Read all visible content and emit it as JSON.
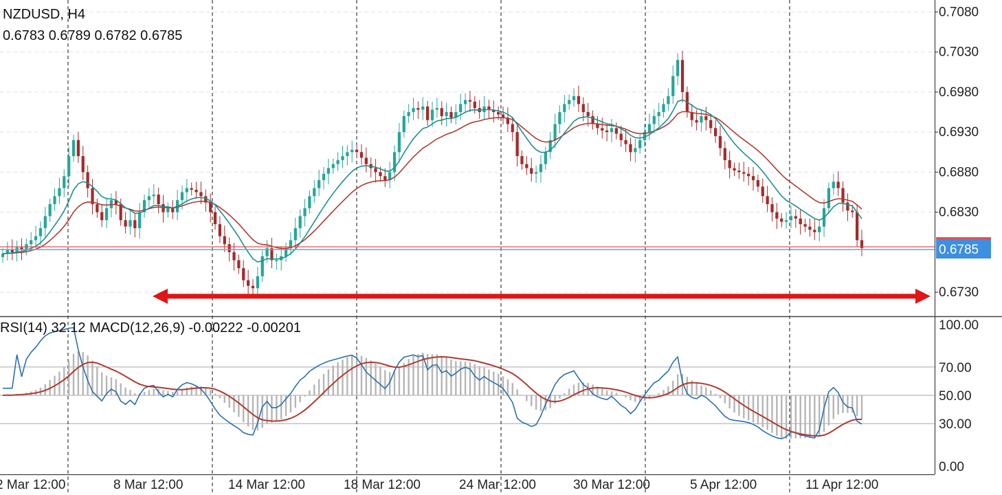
{
  "header": {
    "symbol": "NZDUSD, H4",
    "ohlc": "0.6783 0.6789 0.6782 0.6785"
  },
  "indicators_label": "RSI(14) 32.12 MACD(12,26,9) -0.00222 -0.00201",
  "price_axis": [
    "0.7080",
    "0.7030",
    "0.6980",
    "0.6930",
    "0.6880",
    "0.6830",
    "0.6730"
  ],
  "current_price": "0.6785",
  "indicator_axis": [
    "100.00",
    "70.00",
    "50.00",
    "30.00",
    "0.00"
  ],
  "time_axis": [
    "2 Mar 12:00",
    "8 Mar 12:00",
    "14 Mar 12:00",
    "18 Mar 12:00",
    "24 Mar 12:00",
    "30 Mar 12:00",
    "5 Apr 12:00",
    "11 Apr 12:00"
  ],
  "colors": {
    "bull": "#26a69a",
    "bear": "#a52a2a",
    "ma_fast": "#1b8f8f",
    "ma_slow": "#b03a2e",
    "rsi": "#2a6fb0",
    "macd_signal": "#b03a2e",
    "macd_hist": "#b5b5b5",
    "arrow": "#e01515",
    "price_label_bg": "#3d8fe0",
    "bid_line": "#6fa0dc",
    "ask_line": "#e05050"
  },
  "chart_data": {
    "type": "candlestick",
    "symbol": "NZDUSD",
    "timeframe": "H4",
    "ylim": [
      0.67,
      0.7095
    ],
    "last_price": 0.6785,
    "support_level": 0.6725,
    "closes": [
      0.6778,
      0.6783,
      0.678,
      0.6786,
      0.6783,
      0.679,
      0.6795,
      0.68,
      0.681,
      0.6825,
      0.684,
      0.685,
      0.686,
      0.6875,
      0.69,
      0.692,
      0.69,
      0.688,
      0.686,
      0.684,
      0.683,
      0.682,
      0.6835,
      0.6845,
      0.684,
      0.682,
      0.6812,
      0.682,
      0.681,
      0.683,
      0.6845,
      0.685,
      0.6852,
      0.684,
      0.683,
      0.6835,
      0.683,
      0.6845,
      0.6855,
      0.686,
      0.6858,
      0.6855,
      0.685,
      0.6842,
      0.683,
      0.6815,
      0.68,
      0.679,
      0.678,
      0.677,
      0.676,
      0.6745,
      0.6738,
      0.6735,
      0.675,
      0.6775,
      0.6785,
      0.677,
      0.677,
      0.6775,
      0.6785,
      0.6795,
      0.681,
      0.6825,
      0.6835,
      0.685,
      0.686,
      0.687,
      0.6878,
      0.6885,
      0.689,
      0.6895,
      0.69,
      0.6905,
      0.6908,
      0.6905,
      0.6898,
      0.689,
      0.6885,
      0.688,
      0.6875,
      0.687,
      0.688,
      0.6905,
      0.693,
      0.695,
      0.6955,
      0.696,
      0.6958,
      0.6962,
      0.6945,
      0.6958,
      0.696,
      0.695,
      0.6955,
      0.6948,
      0.6955,
      0.6965,
      0.697,
      0.6968,
      0.696,
      0.6955,
      0.6962,
      0.6958,
      0.6955,
      0.6952,
      0.6948,
      0.694,
      0.693,
      0.69,
      0.689,
      0.6885,
      0.6878,
      0.688,
      0.689,
      0.6905,
      0.692,
      0.694,
      0.6955,
      0.6965,
      0.697,
      0.6975,
      0.6965,
      0.6955,
      0.695,
      0.694,
      0.6935,
      0.6932,
      0.693,
      0.6935,
      0.6928,
      0.692,
      0.6915,
      0.6905,
      0.691,
      0.692,
      0.693,
      0.694,
      0.695,
      0.6955,
      0.6965,
      0.6975,
      0.7,
      0.702,
      0.698,
      0.6955,
      0.6945,
      0.6942,
      0.695,
      0.6945,
      0.6935,
      0.6925,
      0.691,
      0.6895,
      0.6885,
      0.6882,
      0.688,
      0.6878,
      0.6875,
      0.687,
      0.6862,
      0.685,
      0.684,
      0.683,
      0.6822,
      0.6818,
      0.682,
      0.6825,
      0.6822,
      0.6815,
      0.6812,
      0.6808,
      0.6805,
      0.6812,
      0.6835,
      0.686,
      0.6868,
      0.686,
      0.6842,
      0.6832,
      0.683,
      0.6795,
      0.6785
    ],
    "ma_fast_period": 10,
    "ma_slow_period": 20,
    "indicators": {
      "rsi_period": 14,
      "rsi_last": 32.12,
      "macd": [
        12,
        26,
        9
      ],
      "macd_main": -0.00222,
      "macd_signal": -0.00201,
      "ylim": [
        0,
        100
      ],
      "levels": [
        30,
        50,
        70
      ]
    },
    "time_labels": [
      "2 Mar 12:00",
      "8 Mar 12:00",
      "14 Mar 12:00",
      "18 Mar 12:00",
      "24 Mar 12:00",
      "30 Mar 12:00",
      "5 Apr 12:00",
      "11 Apr 12:00"
    ]
  }
}
